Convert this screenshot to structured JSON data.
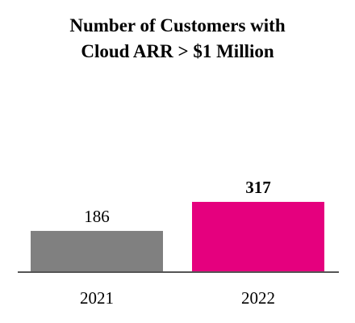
{
  "chart_data": {
    "type": "bar",
    "title_lines": [
      "Number of Customers with",
      "Cloud ARR > $1 Million"
    ],
    "categories": [
      "2021",
      "2022"
    ],
    "values": [
      186,
      317
    ],
    "data_labels": [
      "186",
      "317"
    ],
    "bar_colors": [
      "#808080",
      "#e5007e"
    ],
    "label_bold": [
      false,
      true
    ],
    "ylim": [
      0,
      317
    ],
    "grid": false,
    "legend": "none",
    "xlabel": "",
    "ylabel": ""
  }
}
